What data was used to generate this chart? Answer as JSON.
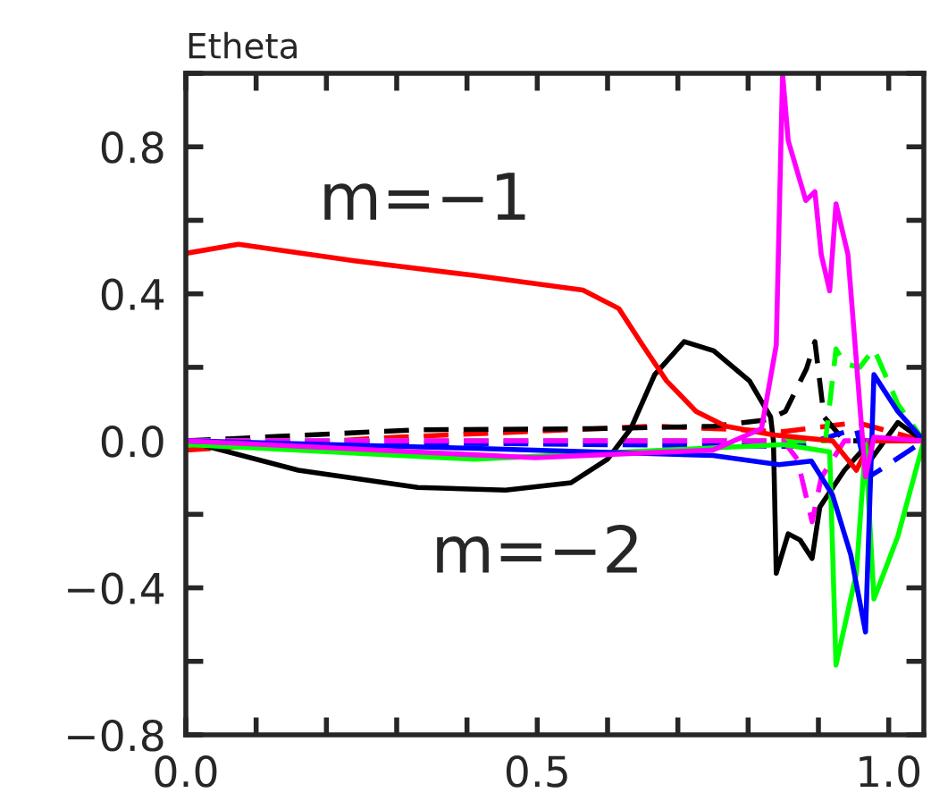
{
  "chart_data": {
    "type": "line",
    "title": "Etheta",
    "xlim": [
      0,
      1.05
    ],
    "ylim": [
      -0.8,
      1.0
    ],
    "xticks": [
      {
        "value": 0,
        "label": "0.0"
      },
      {
        "value": 0.1,
        "label": null
      },
      {
        "value": 0.2,
        "label": null
      },
      {
        "value": 0.3,
        "label": null
      },
      {
        "value": 0.4,
        "label": null
      },
      {
        "value": 0.5,
        "label": "0.5"
      },
      {
        "value": 0.6,
        "label": null
      },
      {
        "value": 0.7,
        "label": null
      },
      {
        "value": 0.8,
        "label": null
      },
      {
        "value": 0.9,
        "label": null
      },
      {
        "value": 1.0,
        "label": "1.0"
      }
    ],
    "yticks": [
      {
        "value": -0.8,
        "label": "−0.8"
      },
      {
        "value": -0.6,
        "label": null
      },
      {
        "value": -0.4,
        "label": "−0.4"
      },
      {
        "value": -0.2,
        "label": null
      },
      {
        "value": 0,
        "label": "0.0"
      },
      {
        "value": 0.2,
        "label": null
      },
      {
        "value": 0.4,
        "label": "0.4"
      },
      {
        "value": 0.6,
        "label": null
      },
      {
        "value": 0.8,
        "label": "0.8"
      },
      {
        "value": 1.0,
        "label": null
      }
    ],
    "grid": false,
    "legend": false,
    "marker": "none",
    "annotations": [
      "m=−1",
      "m=−2"
    ],
    "series": [
      {
        "color": "#ff0000",
        "line_style": "dashed",
        "x": [
          0,
          0.3,
          0.667,
          0.85,
          0.954,
          1.05
        ],
        "values": [
          -0.025,
          0.01,
          0.04,
          0.025,
          0.05,
          0
        ]
      },
      {
        "color": "#000000",
        "line_style": "dashed",
        "x": [
          0,
          0.328,
          0.582,
          0.751,
          0.827,
          0.853,
          0.883,
          0.895,
          0.908,
          0.937,
          1.05
        ],
        "values": [
          0,
          0.03,
          0.033,
          0.04,
          0.057,
          0.08,
          0.196,
          0.27,
          0.065,
          0,
          0
        ]
      },
      {
        "color": "#0000ff",
        "line_style": "dashed",
        "x": [
          0,
          0.87,
          0.954,
          0.97,
          0.987,
          1.05
        ],
        "values": [
          0,
          -0.015,
          0.033,
          -0.1,
          -0.08,
          0
        ]
      },
      {
        "color": "#00ff00",
        "line_style": "dashed",
        "x": [
          0,
          0.91,
          0.925,
          0.937,
          0.959,
          0.979,
          1.013,
          1.05
        ],
        "values": [
          0,
          0,
          0.25,
          0.21,
          0.2,
          0.25,
          0.1,
          0
        ]
      },
      {
        "color": "#ff00ff",
        "line_style": "dashed",
        "x": [
          0,
          0.85,
          0.87,
          0.891,
          0.904,
          0.937,
          1.05
        ],
        "values": [
          0,
          0,
          -0.05,
          -0.22,
          -0.1,
          0,
          0
        ]
      },
      {
        "color": "#000000",
        "line_style": "solid",
        "x": [
          0,
          0.16,
          0.33,
          0.455,
          0.548,
          0.6,
          0.633,
          0.667,
          0.709,
          0.751,
          0.802,
          0.832,
          0.836,
          0.84,
          0.857,
          0.874,
          0.891,
          0.902,
          0.937,
          0.963,
          0.975,
          1.013,
          1.05
        ],
        "values": [
          0,
          -0.08,
          -0.127,
          -0.134,
          -0.114,
          -0.05,
          0.033,
          0.18,
          0.27,
          0.245,
          0.163,
          0.065,
          0,
          -0.36,
          -0.253,
          -0.27,
          -0.32,
          -0.18,
          -0.08,
          -0.025,
          -0.05,
          0.05,
          0
        ]
      },
      {
        "color": "#ff0000",
        "line_style": "solid",
        "x": [
          0,
          0.075,
          0.24,
          0.41,
          0.565,
          0.616,
          0.65,
          0.684,
          0.726,
          0.768,
          0.836,
          0.92,
          0.954,
          0.975,
          1.05
        ],
        "values": [
          0.51,
          0.535,
          0.49,
          0.45,
          0.41,
          0.36,
          0.26,
          0.163,
          0.08,
          0.04,
          0.016,
          0,
          -0.08,
          0.0,
          0
        ]
      },
      {
        "color": "#00ff00",
        "line_style": "solid",
        "x": [
          0,
          0.41,
          0.85,
          0.916,
          0.925,
          0.954,
          0.967,
          0.979,
          1.013,
          1.05
        ],
        "values": [
          -0.01,
          -0.05,
          -0.01,
          -0.03,
          -0.61,
          -0.36,
          -0.01,
          -0.43,
          -0.26,
          0
        ]
      },
      {
        "color": "#0000ff",
        "line_style": "solid",
        "x": [
          0,
          0.4,
          0.75,
          0.844,
          0.89,
          0.92,
          0.946,
          0.967,
          0.979,
          1.013,
          1.05
        ],
        "values": [
          0,
          -0.02,
          -0.04,
          -0.065,
          -0.055,
          -0.147,
          -0.31,
          -0.52,
          0.18,
          0.08,
          0
        ]
      },
      {
        "color": "#ff00ff",
        "line_style": "solid",
        "x": [
          0,
          0.497,
          0.75,
          0.819,
          0.84,
          0.849,
          0.857,
          0.882,
          0.895,
          0.904,
          0.916,
          0.925,
          0.942,
          0.967,
          0.979,
          1.05
        ],
        "values": [
          0,
          -0.046,
          -0.025,
          0.033,
          0.26,
          1.0,
          0.817,
          0.654,
          0.678,
          0.507,
          0.408,
          0.645,
          0.507,
          -0.098,
          0.01,
          0
        ]
      }
    ]
  }
}
